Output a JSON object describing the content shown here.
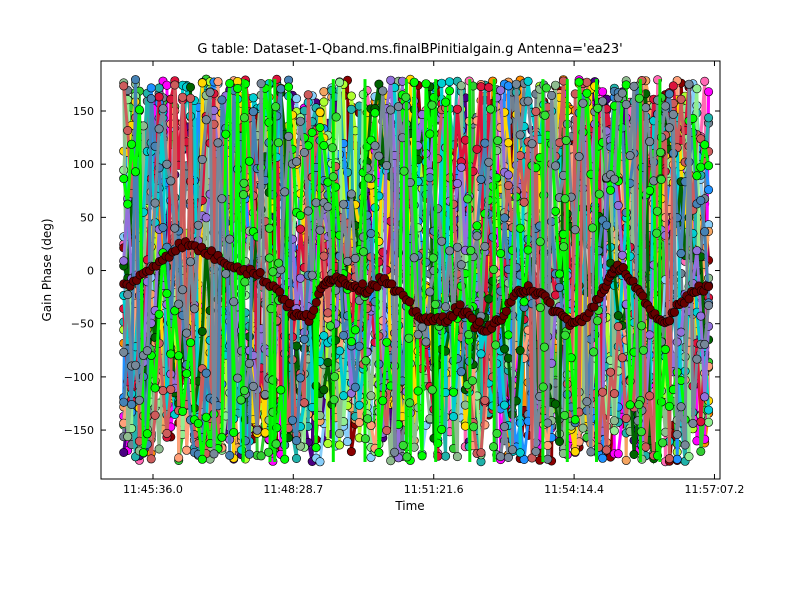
{
  "chart_data": {
    "type": "scatter",
    "title": "G table: Dataset-1-Qband.ms.finalBPinitialgain.g      Antenna='ea23'",
    "xlabel": "Time",
    "ylabel": "Gain Phase (deg)",
    "x_ticks": [
      "11:45:36.0",
      "11:48:28.7",
      "11:51:21.6",
      "11:54:14.4",
      "11:57:07.2"
    ],
    "x_range": [
      "11:44:32",
      "11:57:14"
    ],
    "data_x_range": [
      "11:45:00",
      "11:57:00"
    ],
    "y_ticks": [
      -150,
      -100,
      -50,
      0,
      50,
      100,
      150
    ],
    "ylim": [
      -196,
      197
    ],
    "phase_range": [
      -180,
      180
    ],
    "grid": false,
    "legend": "none",
    "highlight_series": {
      "color": "#660000",
      "points": [
        [
          0,
          -15
        ],
        [
          0.4,
          -5
        ],
        [
          0.8,
          12
        ],
        [
          1.2,
          25
        ],
        [
          1.6,
          20
        ],
        [
          2.0,
          10
        ],
        [
          2.4,
          3
        ],
        [
          2.8,
          -5
        ],
        [
          3.2,
          -20
        ],
        [
          3.5,
          -42
        ],
        [
          3.8,
          -45
        ],
        [
          4.1,
          -15
        ],
        [
          4.3,
          -5
        ],
        [
          4.5,
          -10
        ],
        [
          4.8,
          -15
        ],
        [
          5.0,
          -18
        ],
        [
          5.3,
          -8
        ],
        [
          5.6,
          -20
        ],
        [
          6.0,
          -40
        ],
        [
          6.3,
          -48
        ],
        [
          6.6,
          -45
        ],
        [
          6.9,
          -35
        ],
        [
          7.2,
          -50
        ],
        [
          7.5,
          -55
        ],
        [
          7.8,
          -42
        ],
        [
          8.1,
          -20
        ],
        [
          8.3,
          -15
        ],
        [
          8.6,
          -25
        ],
        [
          8.9,
          -40
        ],
        [
          9.2,
          -50
        ],
        [
          9.5,
          -45
        ],
        [
          9.8,
          -20
        ],
        [
          10.0,
          -5
        ],
        [
          10.2,
          5
        ],
        [
          10.5,
          -15
        ],
        [
          10.8,
          -40
        ],
        [
          11.1,
          -50
        ],
        [
          11.4,
          -30
        ],
        [
          11.7,
          -20
        ],
        [
          12.0,
          -15
        ]
      ]
    },
    "vertical_bursts": {
      "color": "#00ee00",
      "times": [
        2.45,
        3.0,
        3.1,
        4.3,
        4.95,
        5.8,
        6.4,
        7.1,
        7.6,
        8.6,
        9.1,
        9.7,
        10.6,
        11.0
      ]
    },
    "series_colors": [
      "#ff69b4",
      "#ff8c00",
      "#8b0000",
      "#ff00ff",
      "#4b0082",
      "#32cd32",
      "#87cefa",
      "#708090",
      "#f4a460",
      "#adff2f",
      "#20b2aa",
      "#1e90ff",
      "#90ee90",
      "#ffa07a",
      "#ffd700",
      "#8fbc8f",
      "#dc143c",
      "#00ced1",
      "#006400",
      "#9370db",
      "#cd5c5c",
      "#4682b4",
      "#00ff00",
      "#778899"
    ]
  }
}
